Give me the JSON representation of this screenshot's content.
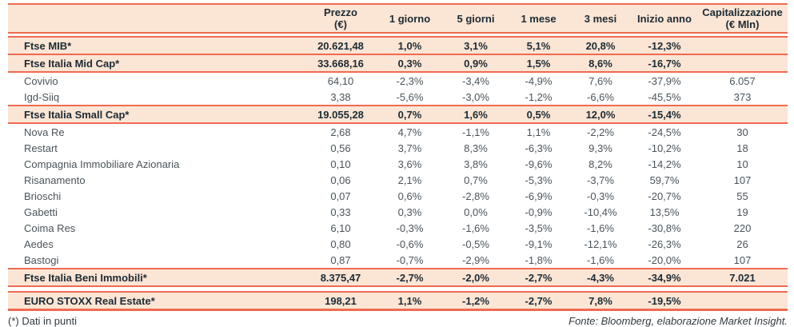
{
  "colors": {
    "accent_line": "#EE6B51",
    "band_background": "#FBE5D5",
    "index_text": "#1C2B34",
    "stock_text": "#4A545B"
  },
  "chart_data": {
    "type": "table",
    "columns": [
      "",
      "Prezzo\n(€)",
      "1 giorno",
      "5 giorni",
      "1 mese",
      "3 mesi",
      "Inizio anno",
      "Capitalizzazione\n(€ Mln)"
    ],
    "rows": [
      {
        "type": "index",
        "name": "Ftse MIB*",
        "values": [
          "20.621,48",
          "1,0%",
          "3,1%",
          "5,1%",
          "20,8%",
          "-12,3%",
          ""
        ]
      },
      {
        "type": "index",
        "name": "Ftse Italia Mid Cap*",
        "values": [
          "33.668,16",
          "0,3%",
          "0,9%",
          "1,5%",
          "8,6%",
          "-16,7%",
          ""
        ]
      },
      {
        "type": "stock",
        "name": "Covivio",
        "values": [
          "64,10",
          "-2,3%",
          "-3,4%",
          "-4,9%",
          "7,6%",
          "-37,9%",
          "6.057"
        ]
      },
      {
        "type": "stock",
        "name": "Igd-Siiq",
        "values": [
          "3,38",
          "-5,6%",
          "-3,0%",
          "-1,2%",
          "-6,6%",
          "-45,5%",
          "373"
        ]
      },
      {
        "type": "index",
        "name": "Ftse Italia Small Cap*",
        "values": [
          "19.055,28",
          "0,7%",
          "1,6%",
          "0,5%",
          "12,0%",
          "-15,4%",
          ""
        ]
      },
      {
        "type": "stock",
        "name": "Nova Re",
        "values": [
          "2,68",
          "4,7%",
          "-1,1%",
          "1,1%",
          "-2,2%",
          "-24,5%",
          "30"
        ]
      },
      {
        "type": "stock",
        "name": "Restart",
        "values": [
          "0,56",
          "3,7%",
          "8,3%",
          "-6,3%",
          "9,3%",
          "-10,2%",
          "18"
        ]
      },
      {
        "type": "stock",
        "name": "Compagnia Immobiliare Azionaria",
        "values": [
          "0,10",
          "3,6%",
          "3,8%",
          "-9,6%",
          "8,2%",
          "-14,2%",
          "10"
        ]
      },
      {
        "type": "stock",
        "name": "Risanamento",
        "values": [
          "0,06",
          "2,1%",
          "0,7%",
          "-5,3%",
          "-3,7%",
          "59,7%",
          "107"
        ]
      },
      {
        "type": "stock",
        "name": "Brioschi",
        "values": [
          "0,07",
          "0,6%",
          "-2,8%",
          "-6,9%",
          "-0,3%",
          "-20,7%",
          "55"
        ]
      },
      {
        "type": "stock",
        "name": "Gabetti",
        "values": [
          "0,33",
          "0,3%",
          "0,0%",
          "-0,9%",
          "-10,4%",
          "13,5%",
          "19"
        ]
      },
      {
        "type": "stock",
        "name": "Coima Res",
        "values": [
          "6,10",
          "-0,3%",
          "-1,6%",
          "-3,5%",
          "-1,6%",
          "-30,8%",
          "220"
        ]
      },
      {
        "type": "stock",
        "name": "Aedes",
        "values": [
          "0,80",
          "-0,6%",
          "-0,5%",
          "-9,1%",
          "-12,1%",
          "-26,3%",
          "26"
        ]
      },
      {
        "type": "stock",
        "name": "Bastogi",
        "values": [
          "0,87",
          "-0,7%",
          "-2,9%",
          "-1,8%",
          "-1,6%",
          "-20,0%",
          "107"
        ]
      },
      {
        "type": "index",
        "name": "Ftse Italia Beni Immobili*",
        "values": [
          "8.375,47",
          "-2,7%",
          "-2,0%",
          "-2,7%",
          "-4,3%",
          "-34,9%",
          "7.021"
        ]
      },
      {
        "type": "spacer"
      },
      {
        "type": "index",
        "name": "EURO STOXX Real Estate*",
        "values": [
          "198,21",
          "1,1%",
          "-1,2%",
          "-2,7%",
          "7,8%",
          "-19,5%",
          ""
        ]
      }
    ],
    "footnote_left": "(*) Dati in punti",
    "source": "Fonte: Bloomberg, elaborazione Market Insight."
  }
}
